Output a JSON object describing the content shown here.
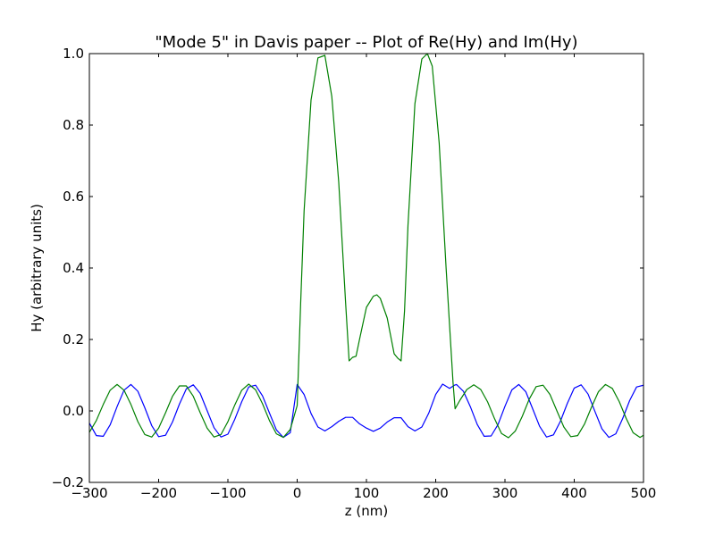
{
  "chart_data": {
    "type": "line",
    "title": "\"Mode 5\" in Davis paper -- Plot of Re(Hy) and Im(Hy)",
    "xlabel": "z (nm)",
    "ylabel": "Hy (arbitrary units)",
    "xlim": [
      -300,
      500
    ],
    "ylim": [
      -0.2,
      1.0
    ],
    "xticks": [
      -300,
      -200,
      -100,
      0,
      100,
      200,
      300,
      400,
      500
    ],
    "xtick_labels": [
      "−300",
      "−200",
      "−100",
      "0",
      "100",
      "200",
      "300",
      "400",
      "500"
    ],
    "yticks": [
      -0.2,
      0.0,
      0.2,
      0.4,
      0.6,
      0.8,
      1.0
    ],
    "ytick_labels": [
      "−0.2",
      "0.0",
      "0.2",
      "0.4",
      "0.6",
      "0.8",
      "1.0"
    ],
    "grid": false,
    "legend": "none",
    "series": [
      {
        "color": "#0000ff",
        "x": [
          -300,
          -290,
          -280,
          -270,
          -260,
          -250,
          -240,
          -230,
          -220,
          -210,
          -200,
          -190,
          -180,
          -170,
          -160,
          -150,
          -140,
          -130,
          -120,
          -110,
          -100,
          -90,
          -80,
          -70,
          -60,
          -50,
          -40,
          -30,
          -20,
          -10,
          0,
          10,
          20,
          30,
          40,
          50,
          60,
          70,
          75,
          80,
          90,
          100,
          110,
          120,
          130,
          140,
          145,
          150,
          160,
          170,
          180,
          190,
          200,
          210,
          220,
          227,
          230,
          240,
          250,
          260,
          270,
          280,
          290,
          300,
          310,
          320,
          330,
          340,
          350,
          360,
          370,
          380,
          390,
          400,
          410,
          420,
          430,
          440,
          450,
          460,
          470,
          480,
          490,
          500
        ],
        "y": [
          -0.034,
          -0.069,
          -0.071,
          -0.039,
          0.012,
          0.058,
          0.074,
          0.055,
          0.009,
          -0.041,
          -0.072,
          -0.068,
          -0.031,
          0.019,
          0.062,
          0.073,
          0.049,
          0.001,
          -0.047,
          -0.073,
          -0.065,
          -0.023,
          0.026,
          0.067,
          0.072,
          0.042,
          -0.006,
          -0.053,
          -0.074,
          -0.061,
          0.074,
          0.046,
          -0.007,
          -0.045,
          -0.056,
          -0.044,
          -0.029,
          -0.018,
          -0.018,
          -0.018,
          -0.036,
          -0.048,
          -0.057,
          -0.048,
          -0.031,
          -0.019,
          -0.019,
          -0.019,
          -0.044,
          -0.056,
          -0.045,
          -0.006,
          0.046,
          0.075,
          0.063,
          0.072,
          0.074,
          0.055,
          0.012,
          -0.038,
          -0.071,
          -0.07,
          -0.038,
          0.013,
          0.059,
          0.074,
          0.054,
          0.006,
          -0.043,
          -0.073,
          -0.067,
          -0.029,
          0.021,
          0.064,
          0.073,
          0.047,
          -0.002,
          -0.05,
          -0.074,
          -0.064,
          -0.021,
          0.029,
          0.067,
          0.072
        ]
      },
      {
        "color": "#008000",
        "x": [
          -300,
          -290,
          -280,
          -270,
          -260,
          -250,
          -240,
          -230,
          -220,
          -210,
          -200,
          -190,
          -180,
          -170,
          -160,
          -150,
          -140,
          -130,
          -120,
          -110,
          -100,
          -90,
          -80,
          -70,
          -60,
          -50,
          -40,
          -30,
          -20,
          -10,
          0,
          5,
          10,
          20,
          30,
          40,
          50,
          60,
          70,
          75,
          80,
          85,
          90,
          100,
          110,
          115,
          120,
          130,
          140,
          145,
          150,
          155,
          160,
          170,
          180,
          188,
          195,
          205,
          215,
          225,
          228,
          235,
          245,
          255,
          265,
          275,
          285,
          295,
          305,
          315,
          325,
          335,
          345,
          355,
          365,
          375,
          385,
          395,
          405,
          415,
          425,
          435,
          445,
          455,
          465,
          475,
          485,
          495,
          500
        ],
        "y": [
          -0.06,
          -0.027,
          0.018,
          0.058,
          0.074,
          0.058,
          0.018,
          -0.03,
          -0.066,
          -0.073,
          -0.048,
          -0.005,
          0.041,
          0.07,
          0.07,
          0.041,
          -0.005,
          -0.048,
          -0.073,
          -0.066,
          -0.03,
          0.017,
          0.058,
          0.075,
          0.059,
          0.02,
          -0.027,
          -0.064,
          -0.074,
          -0.052,
          0.015,
          0.3,
          0.56,
          0.87,
          0.988,
          0.995,
          0.88,
          0.64,
          0.3,
          0.14,
          0.15,
          0.153,
          0.2,
          0.29,
          0.321,
          0.325,
          0.315,
          0.26,
          0.16,
          0.148,
          0.14,
          0.28,
          0.52,
          0.86,
          0.985,
          1.0,
          0.965,
          0.75,
          0.4,
          0.08,
          0.006,
          0.03,
          0.06,
          0.073,
          0.06,
          0.025,
          -0.022,
          -0.063,
          -0.075,
          -0.056,
          -0.015,
          0.033,
          0.068,
          0.072,
          0.046,
          0.0,
          -0.045,
          -0.072,
          -0.069,
          -0.036,
          0.011,
          0.054,
          0.074,
          0.063,
          0.026,
          -0.021,
          -0.061,
          -0.074,
          -0.068
        ]
      }
    ]
  }
}
